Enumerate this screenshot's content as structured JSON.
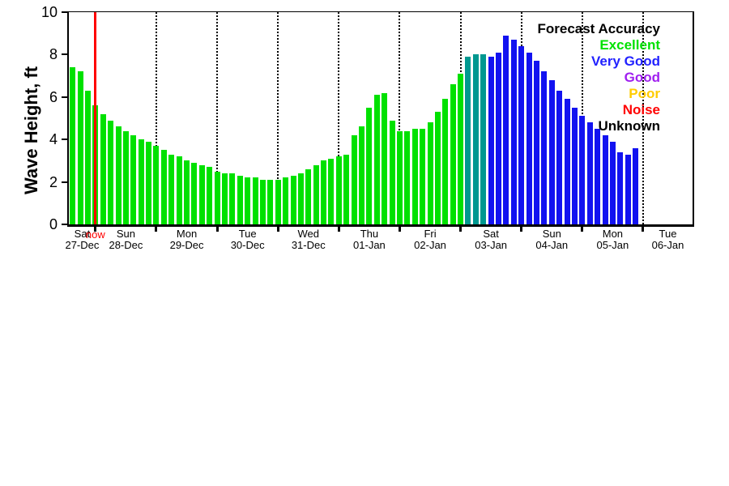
{
  "legend": {
    "title": "Forecast Accuracy",
    "title_color": "#000000",
    "items": [
      {
        "label": "Excellent",
        "color": "#00e100"
      },
      {
        "label": "Very Good",
        "color": "#2222ff"
      },
      {
        "label": "Good",
        "color": "#a020f0"
      },
      {
        "label": "Poor",
        "color": "#ffcc00"
      },
      {
        "label": "Noise",
        "color": "#ff0000"
      },
      {
        "label": "Unknown",
        "color": "#000000"
      }
    ]
  },
  "chart_data": {
    "type": "bar",
    "title": "",
    "xlabel": "",
    "ylabel": "Wave Height, ft",
    "ylim": [
      0,
      10
    ],
    "yticks": [
      0,
      2,
      4,
      6,
      8,
      10
    ],
    "grid": "vertical-dotted-at-day-boundaries",
    "legend_position": "top-right-inside",
    "bar_interval_hours": 3,
    "first_bar_hour": 1.5,
    "total_hours": 246,
    "now_hour": 10.5,
    "now_label": "now",
    "day_boundary_hours": [
      10.5,
      34.5,
      58.5,
      82.5,
      106.5,
      130.5,
      154.5,
      178.5,
      202.5,
      226.5
    ],
    "days": [
      {
        "day": "Sat",
        "date": "27-Dec"
      },
      {
        "day": "Sun",
        "date": "28-Dec"
      },
      {
        "day": "Mon",
        "date": "29-Dec"
      },
      {
        "day": "Tue",
        "date": "30-Dec"
      },
      {
        "day": "Wed",
        "date": "31-Dec"
      },
      {
        "day": "Thu",
        "date": "01-Jan"
      },
      {
        "day": "Fri",
        "date": "02-Jan"
      },
      {
        "day": "Sat",
        "date": "03-Jan"
      },
      {
        "day": "Sun",
        "date": "04-Jan"
      },
      {
        "day": "Mon",
        "date": "05-Jan"
      },
      {
        "day": "Tue",
        "date": "06-Jan"
      }
    ],
    "values": [
      7.4,
      7.2,
      6.3,
      5.6,
      5.2,
      4.9,
      4.6,
      4.4,
      4.2,
      4.0,
      3.9,
      3.7,
      3.5,
      3.3,
      3.2,
      3.0,
      2.9,
      2.8,
      2.7,
      2.5,
      2.4,
      2.4,
      2.3,
      2.2,
      2.2,
      2.1,
      2.1,
      2.1,
      2.2,
      2.3,
      2.4,
      2.6,
      2.8,
      3.0,
      3.1,
      3.2,
      3.3,
      4.2,
      4.6,
      5.5,
      6.1,
      6.2,
      4.9,
      4.4,
      4.4,
      4.5,
      4.5,
      4.8,
      5.3,
      5.9,
      6.6,
      7.1,
      7.9,
      8.0,
      8.0,
      7.9,
      8.1,
      8.9,
      8.7,
      8.4,
      8.1,
      7.7,
      7.2,
      6.8,
      6.3,
      5.9,
      5.5,
      5.1,
      4.8,
      4.5,
      4.2,
      3.9,
      3.4,
      3.3,
      3.6
    ],
    "accuracy_spans": [
      {
        "start": 0,
        "end": 51,
        "level": "excellent"
      },
      {
        "start": 52,
        "end": 54,
        "level": "excellent-to-very-good"
      },
      {
        "start": 55,
        "end": 74,
        "level": "very-good"
      }
    ],
    "accuracy_colors": {
      "excellent": "#00e100",
      "excellent-to-very-good": "#009890",
      "very-good": "#1212f0"
    }
  }
}
